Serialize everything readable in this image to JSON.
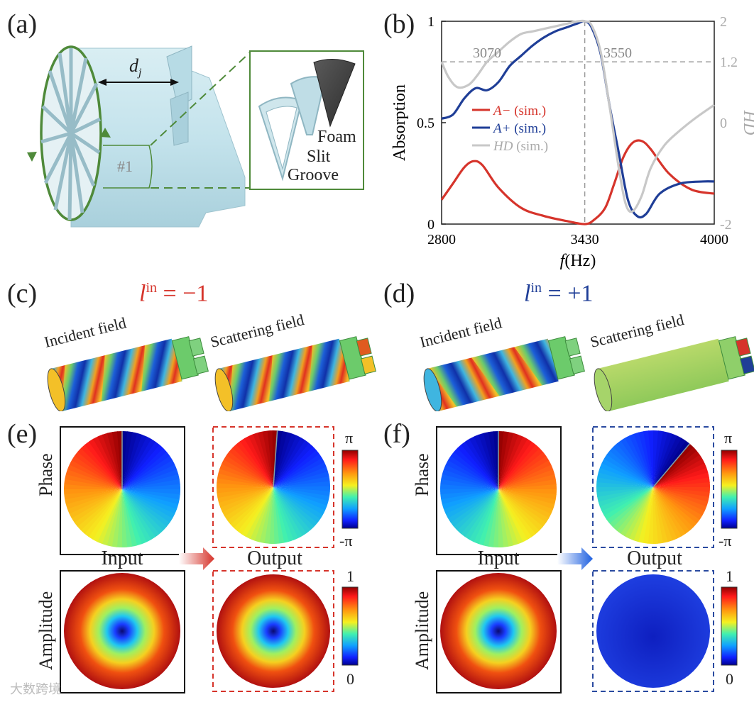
{
  "panels": {
    "a": "(a)",
    "b": "(b)",
    "c": "(c)",
    "d": "(d)",
    "e": "(e)",
    "f": "(f)"
  },
  "panel_a": {
    "dimension_label": "d",
    "dimension_sub": "j",
    "unit_label": "#1",
    "inset_labels": {
      "foam": "Foam",
      "slit": "Slit",
      "groove": "Groove"
    }
  },
  "chart_data": {
    "type": "line",
    "xlabel_italic": "f",
    "xlabel_rest": "(Hz)",
    "ylabel": "Absorption",
    "y2label": "HD",
    "xlim": [
      2800,
      4000
    ],
    "ylim": [
      0,
      1
    ],
    "y2lim": [
      -2,
      2
    ],
    "xticks": [
      "2800",
      "3430",
      "4000"
    ],
    "yticks": [
      "0",
      "0.5",
      "1"
    ],
    "y2ticks": [
      "-2",
      "0",
      "1.2",
      "2"
    ],
    "annotations": [
      "3070",
      "3550"
    ],
    "reference_lines": {
      "vertical_x": 3430,
      "horizontal_y2": 1.2
    },
    "series": [
      {
        "name": "A−",
        "suffix": " (sim.)",
        "color": "#d6342b",
        "axis": "left",
        "x": [
          2800,
          2850,
          2900,
          2940,
          2980,
          3050,
          3150,
          3250,
          3350,
          3430,
          3470,
          3520,
          3560,
          3600,
          3640,
          3680,
          3720,
          3800,
          3900,
          4000
        ],
        "y": [
          0.12,
          0.2,
          0.28,
          0.31,
          0.29,
          0.18,
          0.08,
          0.04,
          0.015,
          0.0,
          0.02,
          0.08,
          0.2,
          0.33,
          0.4,
          0.41,
          0.37,
          0.25,
          0.17,
          0.15
        ]
      },
      {
        "name": "A+",
        "suffix": " (sim.)",
        "color": "#1f3e97",
        "axis": "left",
        "x": [
          2800,
          2850,
          2900,
          2950,
          3000,
          3050,
          3100,
          3150,
          3200,
          3250,
          3300,
          3350,
          3400,
          3430,
          3460,
          3500,
          3540,
          3580,
          3620,
          3660,
          3700,
          3760,
          3850,
          3950,
          4000
        ],
        "y": [
          0.52,
          0.54,
          0.62,
          0.67,
          0.66,
          0.7,
          0.78,
          0.83,
          0.88,
          0.92,
          0.95,
          0.97,
          0.99,
          1.0,
          0.97,
          0.84,
          0.58,
          0.35,
          0.12,
          0.04,
          0.05,
          0.15,
          0.2,
          0.21,
          0.21
        ]
      },
      {
        "name": "HD",
        "suffix": " (sim.)",
        "color": "#c8c8c8",
        "axis": "right",
        "x": [
          2800,
          2830,
          2870,
          2920,
          2960,
          3000,
          3050,
          3100,
          3150,
          3200,
          3250,
          3300,
          3350,
          3400,
          3430,
          3460,
          3500,
          3540,
          3580,
          3610,
          3640,
          3680,
          3720,
          3780,
          3850,
          3920,
          4000
        ],
        "y": [
          1.2,
          0.9,
          0.7,
          0.75,
          0.95,
          1.2,
          1.4,
          1.6,
          1.75,
          1.8,
          1.85,
          1.9,
          1.95,
          2.0,
          2.0,
          1.92,
          1.4,
          0.3,
          -0.9,
          -1.6,
          -1.75,
          -1.45,
          -0.9,
          -0.45,
          -0.15,
          0.1,
          0.35
        ]
      }
    ]
  },
  "panel_c": {
    "lin_symbol": "l",
    "lin_sup": "in",
    "lin_value": " = −1",
    "incident_label": "Incident field",
    "scattering_label": "Scattering field"
  },
  "panel_d": {
    "lin_symbol": "l",
    "lin_sup": "in",
    "lin_value": " = +1",
    "incident_label": "Incident field",
    "scattering_label": "Scattering field"
  },
  "panel_e": {
    "row_phase": "Phase",
    "row_amplitude": "Amplitude",
    "col_input": "Input",
    "col_output": "Output",
    "phase_cbar_top": "π",
    "phase_cbar_bottom": "-π",
    "amp_cbar_top": "1",
    "amp_cbar_bottom": "0"
  },
  "panel_f": {
    "row_phase": "Phase",
    "row_amplitude": "Amplitude",
    "col_input": "Input",
    "col_output": "Output",
    "phase_cbar_top": "π",
    "phase_cbar_bottom": "-π",
    "amp_cbar_top": "1",
    "amp_cbar_bottom": "0"
  },
  "colors": {
    "red": "#d6342b",
    "blue": "#1f3e97",
    "gray": "#c8c8c8",
    "green": "#4f8a3a"
  },
  "watermark": "大数跨境"
}
